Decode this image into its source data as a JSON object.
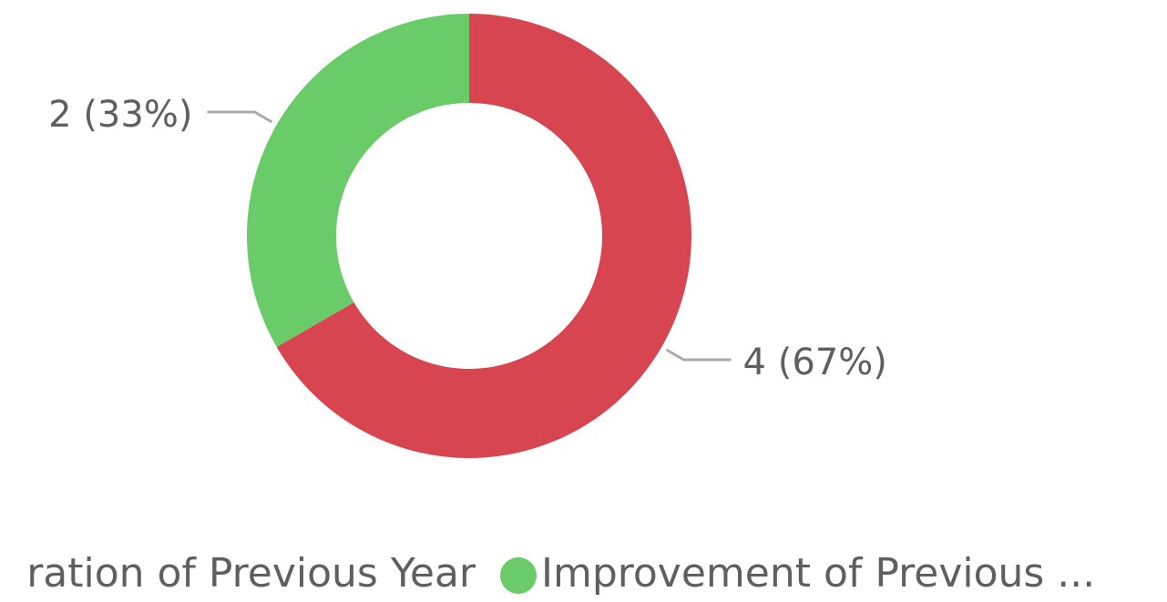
{
  "chart_data": {
    "type": "donut",
    "categories": [
      "ration of Previous Year",
      "Improvement of Previous ..."
    ],
    "values": [
      4,
      2
    ],
    "value_labels": [
      "4 (67%)",
      "2 (33%)"
    ],
    "colors": [
      "#d64550",
      "#69cc68"
    ],
    "legend": "bottom"
  }
}
